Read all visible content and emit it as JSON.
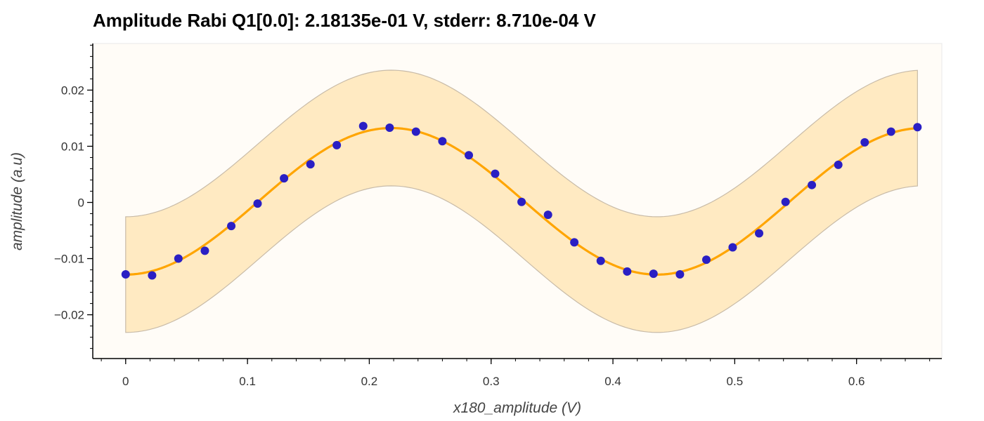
{
  "chart_data": {
    "type": "scatter",
    "title": "Amplitude Rabi Q1[0.0]: 2.18135e-01 V, stderr: 8.710e-04 V",
    "xlabel": "x180_amplitude (V)",
    "ylabel": "amplitude (a.u)",
    "xlim": [
      -0.027,
      0.67
    ],
    "ylim": [
      -0.0278,
      0.0283
    ],
    "x_ticks": [
      0,
      0.1,
      0.2,
      0.3,
      0.4,
      0.5,
      0.6
    ],
    "x_tick_labels": [
      "0",
      "0.1",
      "0.2",
      "0.3",
      "0.4",
      "0.5",
      "0.6"
    ],
    "y_ticks": [
      0.02,
      0.01,
      0,
      -0.01,
      -0.02
    ],
    "y_tick_labels": [
      "0.02",
      "0.01",
      "0",
      "−0.01",
      "−0.02"
    ],
    "grid": false,
    "legend": "none",
    "fit": {
      "model": "offset + amplitude * -cos(2*pi*x/period)",
      "amplitude": 0.01305,
      "period": 0.43627,
      "offset": 0.0002,
      "band_halfwidth": 0.0103
    },
    "series": [
      {
        "kind": "data points",
        "color": "#2a1fc4",
        "x": [
          0.0,
          0.0217,
          0.0433,
          0.065,
          0.0867,
          0.1083,
          0.13,
          0.1517,
          0.1733,
          0.195,
          0.2167,
          0.2383,
          0.26,
          0.2817,
          0.3033,
          0.325,
          0.3467,
          0.3683,
          0.39,
          0.4117,
          0.4333,
          0.455,
          0.4767,
          0.4983,
          0.52,
          0.5417,
          0.5633,
          0.585,
          0.6067,
          0.6283,
          0.65
        ],
        "y": [
          -0.0128,
          -0.013,
          -0.01,
          -0.0086,
          -0.0042,
          -0.0002,
          0.0043,
          0.0068,
          0.0102,
          0.0136,
          0.0133,
          0.0126,
          0.0109,
          0.0084,
          0.0051,
          0.0001,
          -0.0022,
          -0.0071,
          -0.0104,
          -0.0123,
          -0.0127,
          -0.0128,
          -0.0102,
          -0.008,
          -0.0055,
          0.0001,
          0.0031,
          0.0067,
          0.0107,
          0.0126,
          0.0134
        ]
      },
      {
        "kind": "fit curve",
        "color": "#ffa500"
      },
      {
        "kind": "confidence band",
        "color": "#ffe6b8"
      }
    ]
  }
}
